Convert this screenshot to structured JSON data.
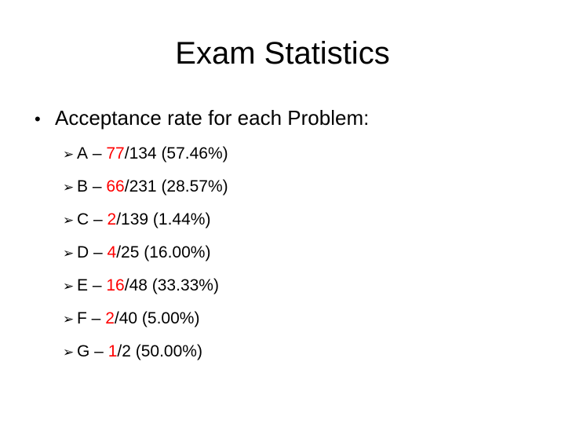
{
  "slide": {
    "title": "Exam Statistics",
    "bullet": "Acceptance rate for each Problem:",
    "problems": [
      {
        "letter": "A",
        "dash": " – ",
        "accepted": "77",
        "rest": "/134 (57.46%)"
      },
      {
        "letter": "B",
        "dash": " – ",
        "accepted": "66",
        "rest": "/231 (28.57%)"
      },
      {
        "letter": "C",
        "dash": " – ",
        "accepted": "2",
        "rest": "/139 (1.44%)"
      },
      {
        "letter": "D",
        "dash": " – ",
        "accepted": "4",
        "rest": "/25 (16.00%)"
      },
      {
        "letter": "E",
        "dash": " – ",
        "accepted": "16",
        "rest": "/48 (33.33%)"
      },
      {
        "letter": "F",
        "dash": " – ",
        "accepted": "2",
        "rest": "/40 (5.00%)"
      },
      {
        "letter": "G",
        "dash": " – ",
        "accepted": "1",
        "rest": "/2 (50.00%)"
      }
    ]
  },
  "colors": {
    "accepted_text": "#ff0000",
    "text": "#000000",
    "background": "#ffffff"
  },
  "icons": {
    "bullet": "bullet-dot-icon",
    "sub_bullet": "arrow-bullet-icon"
  }
}
